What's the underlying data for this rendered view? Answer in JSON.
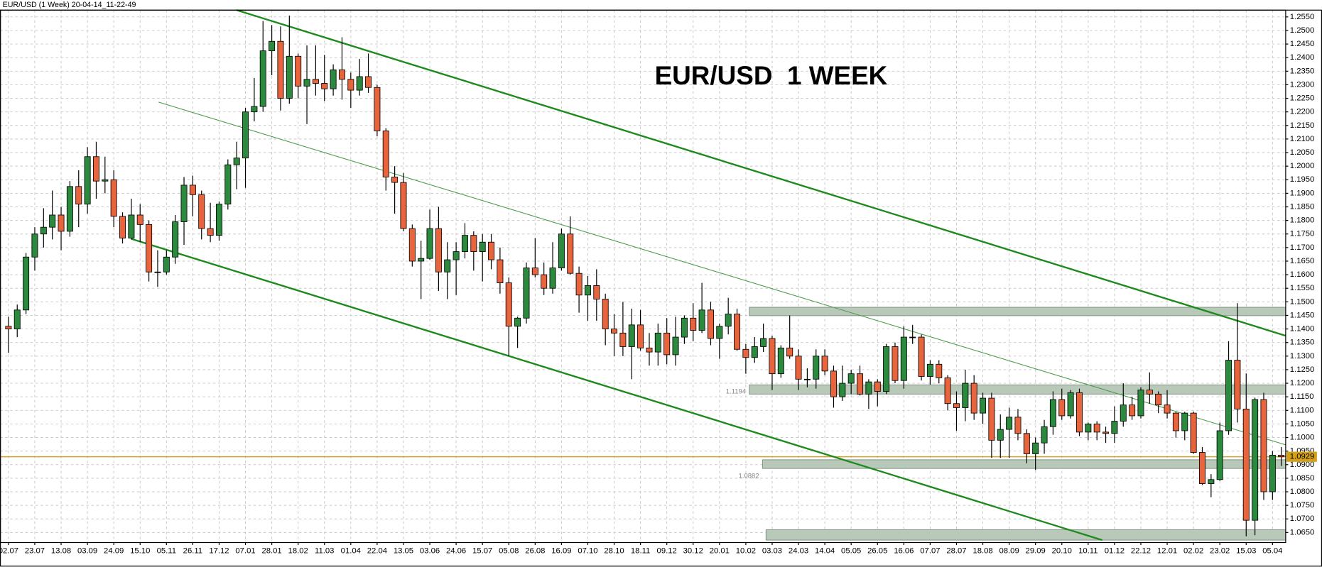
{
  "chart_data": {
    "type": "candlestick",
    "title": "EUR/USD  1 WEEK",
    "subtitle": "EUR/USD (1 Week) 20-04-14_11-22-49",
    "categories": [
      "02.07",
      null,
      null,
      "23.07",
      null,
      null,
      "13.08",
      null,
      null,
      "03.09",
      null,
      null,
      "24.09",
      null,
      null,
      "15.10",
      null,
      null,
      "05.11",
      null,
      null,
      "26.11",
      null,
      null,
      "17.12",
      null,
      null,
      "07.01",
      null,
      null,
      "28.01",
      null,
      null,
      "18.02",
      null,
      null,
      "11.03",
      null,
      null,
      "01.04",
      null,
      null,
      "22.04",
      null,
      null,
      "13.05",
      null,
      null,
      "03.06",
      null,
      null,
      "24.06",
      null,
      null,
      "15.07",
      null,
      null,
      "05.08",
      null,
      null,
      "26.08",
      null,
      null,
      "16.09",
      null,
      null,
      "07.10",
      null,
      null,
      "28.10",
      null,
      null,
      "18.11",
      null,
      null,
      "09.12",
      null,
      null,
      "30.12",
      null,
      null,
      "20.01",
      null,
      null,
      "10.02",
      null,
      null,
      "03.03",
      null,
      null,
      "24.03",
      null,
      null,
      "14.04",
      null,
      null,
      "05.05",
      null,
      null,
      "26.05",
      null,
      null,
      "16.06",
      null,
      null,
      "07.07",
      null,
      null,
      "28.07",
      null,
      null,
      "18.08",
      null,
      null,
      "08.09",
      null,
      null,
      "29.09",
      null,
      null,
      "20.10",
      null,
      null,
      "10.11",
      null,
      null,
      "01.12",
      null,
      null,
      "22.12",
      null,
      null,
      "12.01",
      null,
      null,
      "02.02",
      null,
      null,
      "23.02",
      null,
      null,
      "15.03",
      null,
      null,
      "05.04",
      null
    ],
    "open": [
      1.141,
      1.14,
      1.147,
      1.1665,
      1.175,
      1.1775,
      1.182,
      1.176,
      1.1925,
      1.186,
      1.2035,
      1.1945,
      1.195,
      1.1815,
      1.1735,
      1.182,
      1.1785,
      1.161,
      1.161,
      1.1665,
      1.1795,
      1.193,
      1.1895,
      1.177,
      1.1745,
      1.186,
      1.2005,
      1.203,
      1.22,
      1.222,
      1.2425,
      1.246,
      1.225,
      1.2405,
      1.2295,
      1.232,
      1.2305,
      1.2285,
      1.2355,
      1.232,
      1.228,
      1.233,
      1.229,
      1.213,
      1.196,
      1.194,
      1.177,
      1.165,
      1.166,
      1.177,
      1.161,
      1.1655,
      1.1685,
      1.1745,
      1.1685,
      1.172,
      1.1655,
      1.157,
      1.141,
      1.144,
      1.1625,
      1.16,
      1.155,
      1.1625,
      1.175,
      1.1605,
      1.1525,
      1.156,
      1.151,
      1.14,
      1.1385,
      1.1335,
      1.1415,
      1.133,
      1.1315,
      1.1385,
      1.1305,
      1.137,
      1.144,
      1.1395,
      1.147,
      1.1365,
      1.141,
      1.1455,
      1.1325,
      1.1295,
      1.1335,
      1.1365,
      1.1235,
      1.133,
      1.13,
      1.1215,
      1.1215,
      1.13,
      1.1245,
      1.115,
      1.12,
      1.1235,
      1.116,
      1.1205,
      1.117,
      1.1335,
      1.121,
      1.137,
      1.137,
      1.1225,
      1.127,
      1.122,
      1.1125,
      1.111,
      1.12,
      1.109,
      1.1145,
      1.099,
      1.103,
      1.1075,
      1.1015,
      1.094,
      1.098,
      1.104,
      1.114,
      1.108,
      1.1165,
      1.102,
      1.105,
      1.102,
      1.1015,
      1.106,
      1.112,
      1.108,
      1.1175,
      1.116,
      1.112,
      1.109,
      1.1025,
      1.109,
      1.0945,
      1.083,
      1.0845,
      1.1025,
      1.1285,
      1.1105,
      1.0695,
      1.114,
      1.08,
      1.0935
    ],
    "high": [
      1.1445,
      1.149,
      1.168,
      1.1775,
      1.1845,
      1.191,
      1.185,
      1.1945,
      1.1985,
      1.207,
      1.209,
      1.2035,
      1.1985,
      1.183,
      1.188,
      1.186,
      1.18,
      1.169,
      1.169,
      1.182,
      1.196,
      1.1965,
      1.191,
      1.1865,
      1.187,
      1.2025,
      1.209,
      1.2215,
      1.2325,
      1.2535,
      1.252,
      1.2515,
      1.2555,
      1.2415,
      1.2445,
      1.2445,
      1.241,
      1.2375,
      1.2475,
      1.2345,
      1.2395,
      1.2415,
      1.23,
      1.214,
      1.2,
      1.1975,
      1.1785,
      1.1725,
      1.184,
      1.185,
      1.172,
      1.172,
      1.179,
      1.176,
      1.175,
      1.175,
      1.17,
      1.159,
      1.1445,
      1.1645,
      1.1735,
      1.1645,
      1.172,
      1.177,
      1.1815,
      1.163,
      1.1595,
      1.162,
      1.153,
      1.1455,
      1.15,
      1.1475,
      1.147,
      1.1385,
      1.142,
      1.144,
      1.1445,
      1.145,
      1.1495,
      1.157,
      1.15,
      1.142,
      1.1515,
      1.1475,
      1.1345,
      1.137,
      1.142,
      1.1375,
      1.134,
      1.145,
      1.1325,
      1.1255,
      1.1325,
      1.1325,
      1.1265,
      1.1265,
      1.125,
      1.1265,
      1.1215,
      1.1215,
      1.1345,
      1.135,
      1.141,
      1.1415,
      1.138,
      1.1285,
      1.1285,
      1.123,
      1.117,
      1.125,
      1.123,
      1.1165,
      1.1165,
      1.1085,
      1.111,
      1.1105,
      1.103,
      1.1,
      1.1065,
      1.117,
      1.118,
      1.1175,
      1.118,
      1.1055,
      1.106,
      1.104,
      1.1115,
      1.12,
      1.115,
      1.1185,
      1.124,
      1.117,
      1.1175,
      1.1095,
      1.1095,
      1.1095,
      1.0965,
      1.0865,
      1.1055,
      1.1355,
      1.1495,
      1.1236,
      1.1147,
      1.1165,
      1.095,
      1.0965
    ],
    "low": [
      1.1312,
      1.137,
      1.1455,
      1.1615,
      1.17,
      1.173,
      1.169,
      1.174,
      1.1775,
      1.1825,
      1.188,
      1.19,
      1.1775,
      1.1715,
      1.173,
      1.172,
      1.1575,
      1.1555,
      1.16,
      1.164,
      1.171,
      1.1815,
      1.173,
      1.172,
      1.1725,
      1.184,
      1.1915,
      1.192,
      1.2165,
      1.22,
      1.2335,
      1.2205,
      1.223,
      1.225,
      1.2155,
      1.226,
      1.224,
      1.226,
      1.2245,
      1.2215,
      1.226,
      1.227,
      1.211,
      1.191,
      1.1825,
      1.176,
      1.163,
      1.151,
      1.1655,
      1.154,
      1.151,
      1.1525,
      1.166,
      1.1615,
      1.1575,
      1.162,
      1.153,
      1.13,
      1.133,
      1.142,
      1.159,
      1.1525,
      1.153,
      1.1615,
      1.16,
      1.146,
      1.143,
      1.143,
      1.134,
      1.13,
      1.13,
      1.1215,
      1.132,
      1.1265,
      1.1265,
      1.127,
      1.1265,
      1.1345,
      1.1355,
      1.1385,
      1.134,
      1.129,
      1.138,
      1.132,
      1.1235,
      1.1275,
      1.1315,
      1.1175,
      1.122,
      1.129,
      1.1175,
      1.1185,
      1.118,
      1.123,
      1.111,
      1.1135,
      1.116,
      1.1155,
      1.1105,
      1.1115,
      1.116,
      1.12,
      1.118,
      1.1345,
      1.121,
      1.1195,
      1.12,
      1.11,
      1.1025,
      1.106,
      1.1065,
      1.105,
      1.0925,
      1.0925,
      1.0925,
      1.099,
      1.0905,
      1.088,
      1.094,
      1.101,
      1.1065,
      1.107,
      1.1005,
      1.099,
      1.099,
      1.098,
      1.098,
      1.104,
      1.1065,
      1.107,
      1.1125,
      1.109,
      1.107,
      1.1,
      1.099,
      1.094,
      1.0825,
      1.078,
      1.084,
      1.101,
      1.1055,
      1.0636,
      1.064,
      1.077,
      1.077,
      1.0895
    ],
    "close": [
      1.14,
      1.147,
      1.1665,
      1.175,
      1.1775,
      1.182,
      1.176,
      1.1925,
      1.186,
      1.2035,
      1.1945,
      1.195,
      1.1815,
      1.1735,
      1.182,
      1.1785,
      1.161,
      1.161,
      1.1665,
      1.1795,
      1.193,
      1.1895,
      1.177,
      1.1745,
      1.186,
      1.2005,
      1.203,
      1.22,
      1.222,
      1.2425,
      1.246,
      1.225,
      1.2405,
      1.2295,
      1.232,
      1.2305,
      1.2285,
      1.2355,
      1.232,
      1.228,
      1.233,
      1.229,
      1.213,
      1.196,
      1.194,
      1.177,
      1.165,
      1.166,
      1.177,
      1.161,
      1.1655,
      1.1685,
      1.1745,
      1.1685,
      1.172,
      1.1655,
      1.157,
      1.141,
      1.144,
      1.1625,
      1.16,
      1.155,
      1.1625,
      1.175,
      1.1605,
      1.1525,
      1.156,
      1.151,
      1.14,
      1.1385,
      1.1335,
      1.1415,
      1.133,
      1.1315,
      1.1385,
      1.1305,
      1.137,
      1.144,
      1.1395,
      1.147,
      1.1365,
      1.141,
      1.1455,
      1.1325,
      1.1295,
      1.1335,
      1.1365,
      1.1235,
      1.133,
      1.13,
      1.1215,
      1.1215,
      1.13,
      1.1245,
      1.115,
      1.12,
      1.1235,
      1.116,
      1.1205,
      1.117,
      1.1335,
      1.121,
      1.137,
      1.137,
      1.1225,
      1.127,
      1.122,
      1.1125,
      1.111,
      1.12,
      1.109,
      1.1145,
      1.099,
      1.103,
      1.1075,
      1.1015,
      1.094,
      1.098,
      1.104,
      1.114,
      1.108,
      1.1165,
      1.102,
      1.105,
      1.102,
      1.1015,
      1.106,
      1.112,
      1.108,
      1.1175,
      1.116,
      1.112,
      1.109,
      1.1025,
      1.109,
      1.0945,
      1.083,
      1.0845,
      1.1025,
      1.1285,
      1.1105,
      1.0695,
      1.114,
      1.08,
      1.0935,
      1.0929
    ],
    "up_color": "#2b8a3e",
    "down_color": "#e8643c",
    "ylim": [
      1.0613,
      1.2575
    ],
    "yticks": [
      {
        "value": 1.065,
        "label": "1.0650"
      },
      {
        "value": 1.07,
        "label": "1.0700"
      },
      {
        "value": 1.075,
        "label": "1.0750"
      },
      {
        "value": 1.08,
        "label": "1.0800"
      },
      {
        "value": 1.085,
        "label": "1.0850"
      },
      {
        "value": 1.09,
        "label": "1.0900"
      },
      {
        "value": 1.095,
        "label": "1.0950"
      },
      {
        "value": 1.1,
        "label": "1.1000"
      },
      {
        "value": 1.105,
        "label": "1.1050"
      },
      {
        "value": 1.11,
        "label": "1.1100"
      },
      {
        "value": 1.115,
        "label": "1.1150"
      },
      {
        "value": 1.12,
        "label": "1.1200"
      },
      {
        "value": 1.125,
        "label": "1.1250"
      },
      {
        "value": 1.13,
        "label": "1.1300"
      },
      {
        "value": 1.135,
        "label": "1.1350"
      },
      {
        "value": 1.14,
        "label": "1.1400"
      },
      {
        "value": 1.145,
        "label": "1.1450"
      },
      {
        "value": 1.15,
        "label": "1.1500"
      },
      {
        "value": 1.155,
        "label": "1.1550"
      },
      {
        "value": 1.16,
        "label": "1.1600"
      },
      {
        "value": 1.165,
        "label": "1.1650"
      },
      {
        "value": 1.17,
        "label": "1.1700"
      },
      {
        "value": 1.175,
        "label": "1.1750"
      },
      {
        "value": 1.18,
        "label": "1.1800"
      },
      {
        "value": 1.185,
        "label": "1.1850"
      },
      {
        "value": 1.19,
        "label": "1.1900"
      },
      {
        "value": 1.195,
        "label": "1.1950"
      },
      {
        "value": 1.2,
        "label": "1.2000"
      },
      {
        "value": 1.205,
        "label": "1.2050"
      },
      {
        "value": 1.21,
        "label": "1.2100"
      },
      {
        "value": 1.215,
        "label": "1.2150"
      },
      {
        "value": 1.22,
        "label": "1.2200"
      },
      {
        "value": 1.225,
        "label": "1.2250"
      },
      {
        "value": 1.23,
        "label": "1.2300"
      },
      {
        "value": 1.235,
        "label": "1.2350"
      },
      {
        "value": 1.24,
        "label": "1.2400"
      },
      {
        "value": 1.245,
        "label": "1.2450"
      },
      {
        "value": 1.25,
        "label": "1.2500"
      },
      {
        "value": 1.255,
        "label": "1.2550"
      }
    ],
    "grid": true,
    "last_price": 1.0929,
    "last_price_color": "#d4a017",
    "trend_lines": [
      {
        "color": "#1e8a1e",
        "x": [
          26.0,
          145.5
        ],
        "y": [
          1.2575,
          1.1375
        ]
      },
      {
        "color": "#1e8a1e",
        "x": [
          14.0,
          124.6
        ],
        "y": [
          1.1732,
          1.0622
        ]
      },
      {
        "color": "#4a9a4a",
        "x": [
          17.1,
          145.5
        ],
        "y": [
          1.2236,
          1.0973
        ]
      }
    ],
    "zone_color": "#b9c9b9",
    "zones": [
      {
        "x_start": 84.4,
        "low": 1.1449,
        "high": 1.148
      },
      {
        "x_start": 84.4,
        "low": 1.116,
        "high": 1.1194,
        "level": 1.1194
      },
      {
        "x_start": 85.9,
        "low": 1.0886,
        "high": 1.0918,
        "level": 1.0882
      },
      {
        "x_start": 86.3,
        "low": 1.0622,
        "high": 1.066
      }
    ]
  }
}
